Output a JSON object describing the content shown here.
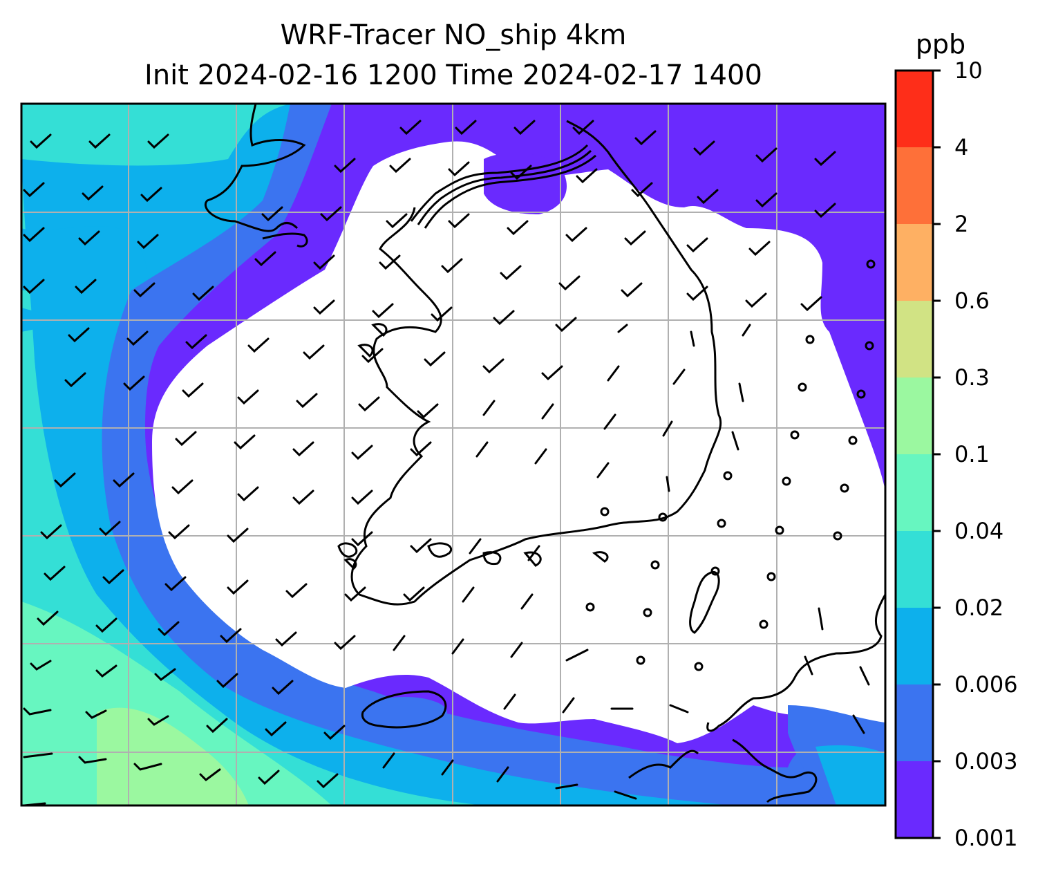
{
  "title": {
    "line1": "WRF-Tracer NO_ship 4km",
    "line2": "Init 2024-02-16 1200 Time 2024-02-17 1400"
  },
  "colorbar": {
    "unit": "ppb",
    "levels": [
      "0.001",
      "0.003",
      "0.006",
      "0.02",
      "0.04",
      "0.1",
      "0.3",
      "0.6",
      "2",
      "4",
      "10"
    ],
    "colors": [
      "#6a2afe",
      "#3b74f0",
      "#0db0ec",
      "#34dfd6",
      "#67f6c0",
      "#9bf8a0",
      "#d1e384",
      "#feb063",
      "#fe7039",
      "#fe2e19"
    ]
  },
  "map": {
    "background_low": "#ffffff",
    "fill_colors": {
      "level_0_001": "#6a2afe",
      "level_0_003": "#3b74f0",
      "level_0_006": "#0db0ec",
      "level_0_02": "#34dfd6",
      "level_0_04": "#67f6c0",
      "level_0_1": "#9bf8a0"
    },
    "grid": true,
    "coastline_color": "#000000",
    "wind_barbs": true
  }
}
